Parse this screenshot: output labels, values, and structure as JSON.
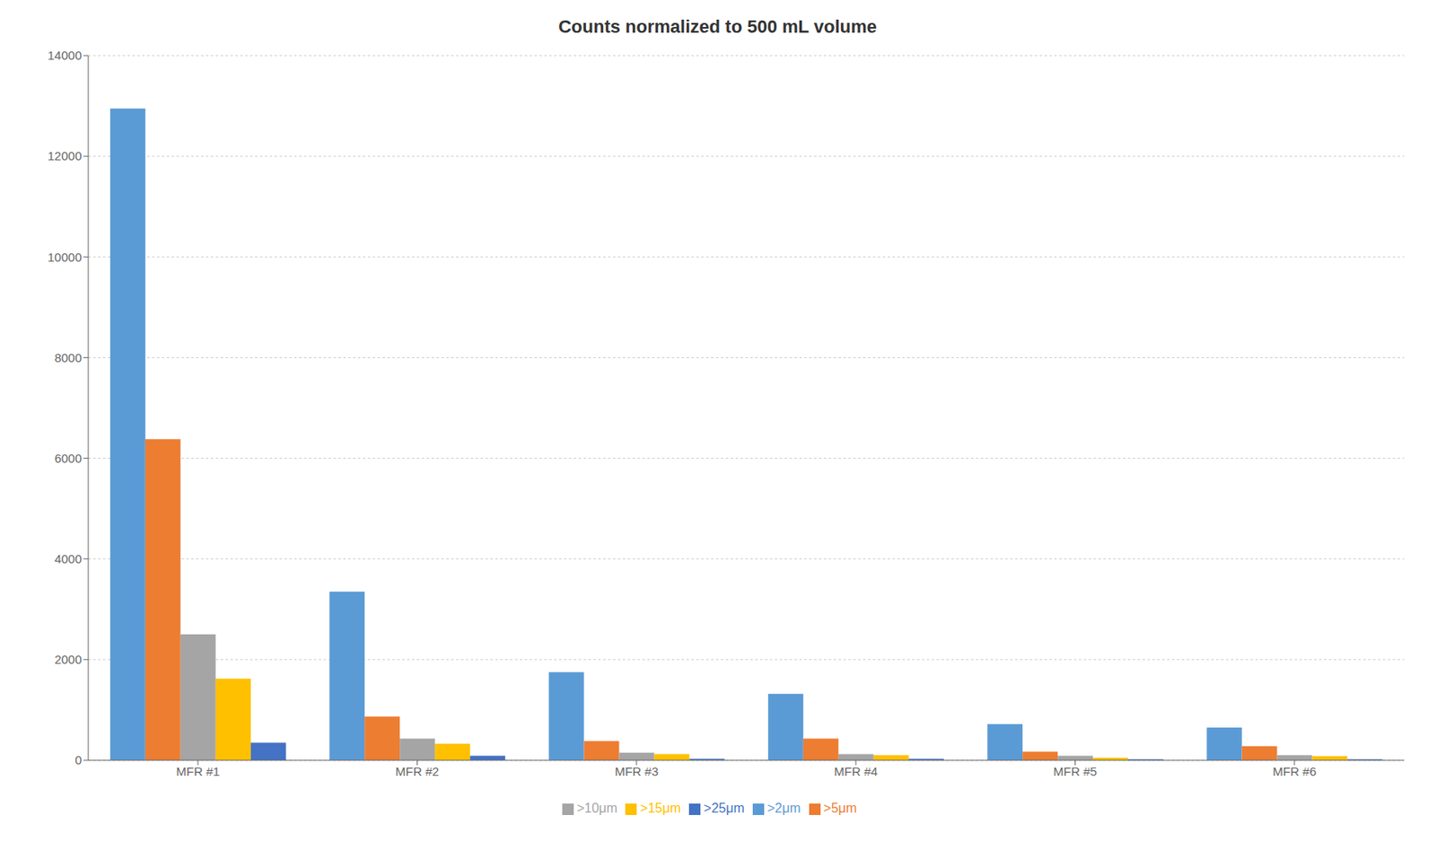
{
  "chart_data": {
    "type": "bar",
    "title": "Counts normalized to 500 mL volume",
    "categories": [
      "MFR #1",
      "MFR #2",
      "MFR #3",
      "MFR #4",
      "MFR #5",
      "MFR #6"
    ],
    "series": [
      {
        "name": ">2μm",
        "color": "#5b9bd5",
        "values": [
          12950,
          3350,
          1750,
          1320,
          720,
          650
        ]
      },
      {
        "name": ">5μm",
        "color": "#ed7d31",
        "values": [
          6380,
          870,
          380,
          430,
          170,
          280
        ]
      },
      {
        "name": ">10μm",
        "color": "#a5a5a5",
        "values": [
          2500,
          430,
          150,
          120,
          90,
          100
        ]
      },
      {
        "name": ">15μm",
        "color": "#ffc000",
        "values": [
          1620,
          330,
          120,
          100,
          50,
          80
        ]
      },
      {
        "name": ">25μm",
        "color": "#4472c4",
        "values": [
          350,
          90,
          30,
          30,
          20,
          20
        ]
      }
    ],
    "ylim": [
      0,
      14000
    ],
    "yticks": [
      0,
      2000,
      4000,
      6000,
      8000,
      10000,
      12000,
      14000
    ],
    "grid": true,
    "legend": "bottom"
  }
}
